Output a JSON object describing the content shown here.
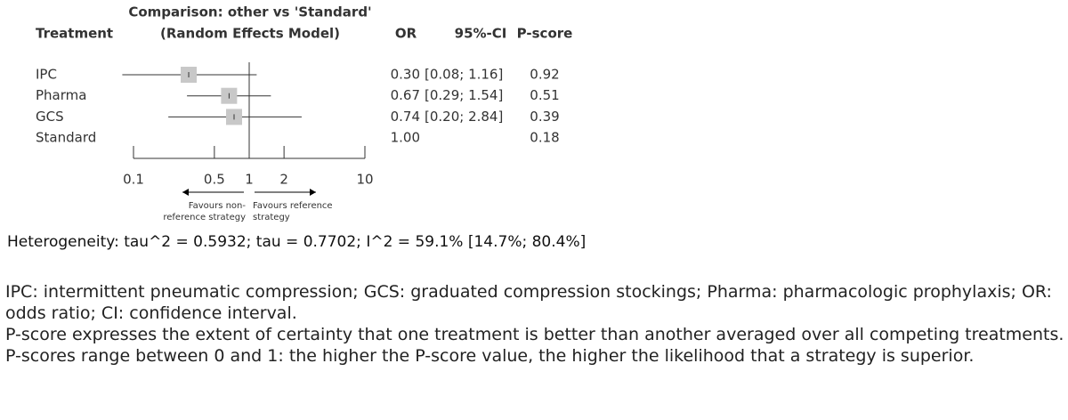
{
  "chart_data": {
    "type": "forest",
    "title": "Comparison: other vs 'Standard'",
    "subtitle": "(Random Effects Model)",
    "columns": {
      "treatment": "Treatment",
      "or": "OR",
      "ci": "95%-CI",
      "pscore": "P-score"
    },
    "categories": [
      "IPC",
      "Pharma",
      "GCS",
      "Standard"
    ],
    "values": [
      0.3,
      0.67,
      0.74,
      1.0
    ],
    "value_labels": [
      "0.30",
      "0.67",
      "0.74",
      "1.00"
    ],
    "lower": [
      0.08,
      0.29,
      0.2,
      null
    ],
    "upper": [
      1.16,
      1.54,
      2.84,
      null
    ],
    "ci_labels": [
      "[0.08; 1.16]",
      "[0.29; 1.54]",
      "[0.20; 2.84]",
      null
    ],
    "pscores": [
      0.92,
      0.51,
      0.39,
      0.18
    ],
    "color": "#c8c8c8",
    "xscale": "log",
    "xlim": [
      0.1,
      10
    ],
    "xticks": [
      0.1,
      0.5,
      1,
      2,
      10
    ],
    "annotations": {
      "left": [
        "Favours non-",
        "reference strategy"
      ],
      "right": [
        "Favours reference",
        "strategy"
      ]
    },
    "heterogeneity": "Heterogeneity: tau^2 = 0.5932; tau = 0.7702; I^2 = 59.1% [14.7%; 80.4%]"
  },
  "notes": [
    "IPC: intermittent pneumatic compression; GCS: graduated compression stockings; Pharma: pharmacologic prophylaxis; OR: odds ratio; CI: confidence interval.",
    "P-score expresses the extent of certainty that one treatment is better than another averaged over all competing treatments. P-scores range between 0 and 1: the higher the P-score value, the higher the likelihood that a strategy is superior."
  ]
}
